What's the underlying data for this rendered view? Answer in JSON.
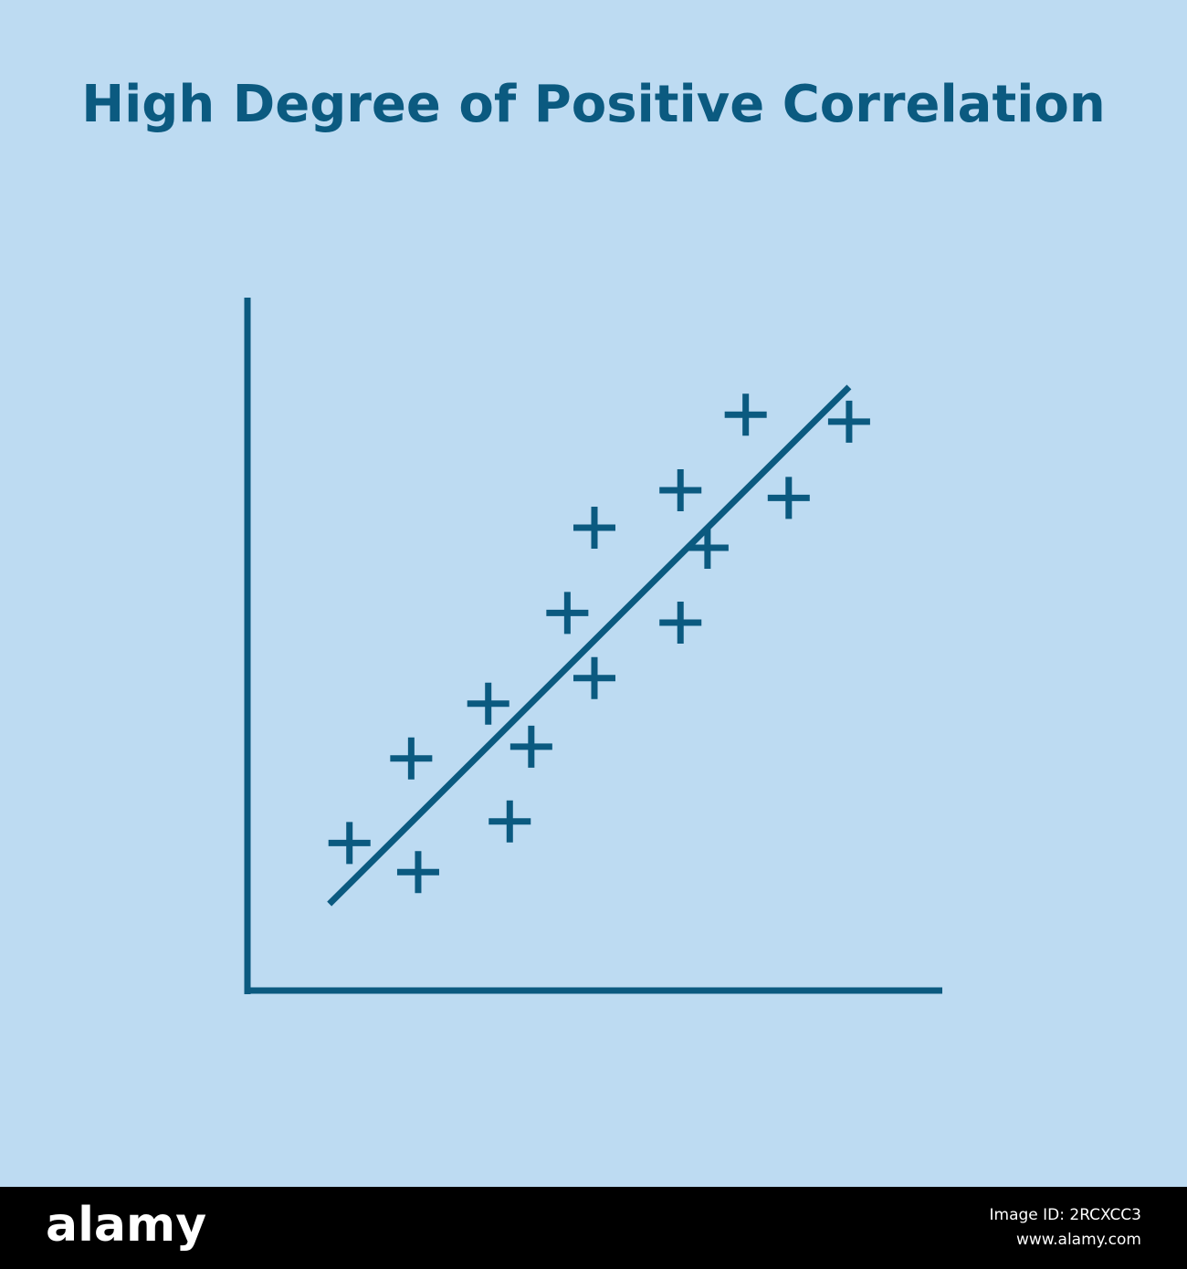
{
  "chart_data": {
    "type": "scatter",
    "title": "High Degree of Positive Correlation",
    "color": "#0b5a80",
    "x": [
      14.7,
      24.6,
      23.6,
      34.7,
      37.8,
      40.9,
      46.1,
      50.0,
      50.0,
      62.4,
      62.4,
      66.3,
      71.8,
      78.0,
      86.7
    ],
    "values": [
      21.3,
      17.1,
      33.5,
      41.4,
      24.4,
      35.2,
      54.5,
      66.8,
      45.1,
      72.2,
      53.1,
      63.9,
      83.1,
      71.1,
      82.1
    ],
    "trend_line": {
      "x": [
        11.8,
        86.7
      ],
      "y": [
        12.5,
        87.1
      ]
    },
    "xlim": [
      0,
      100
    ],
    "ylim": [
      0,
      100
    ]
  },
  "footer": {
    "brand": "alamy",
    "image_id": "Image ID: 2RCXCC3",
    "url": "www.alamy.com"
  }
}
